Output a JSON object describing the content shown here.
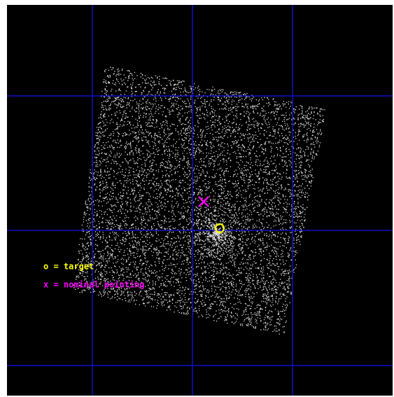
{
  "legend": {
    "target": "o = target",
    "nominal": "x = nominal pointing"
  }
}
